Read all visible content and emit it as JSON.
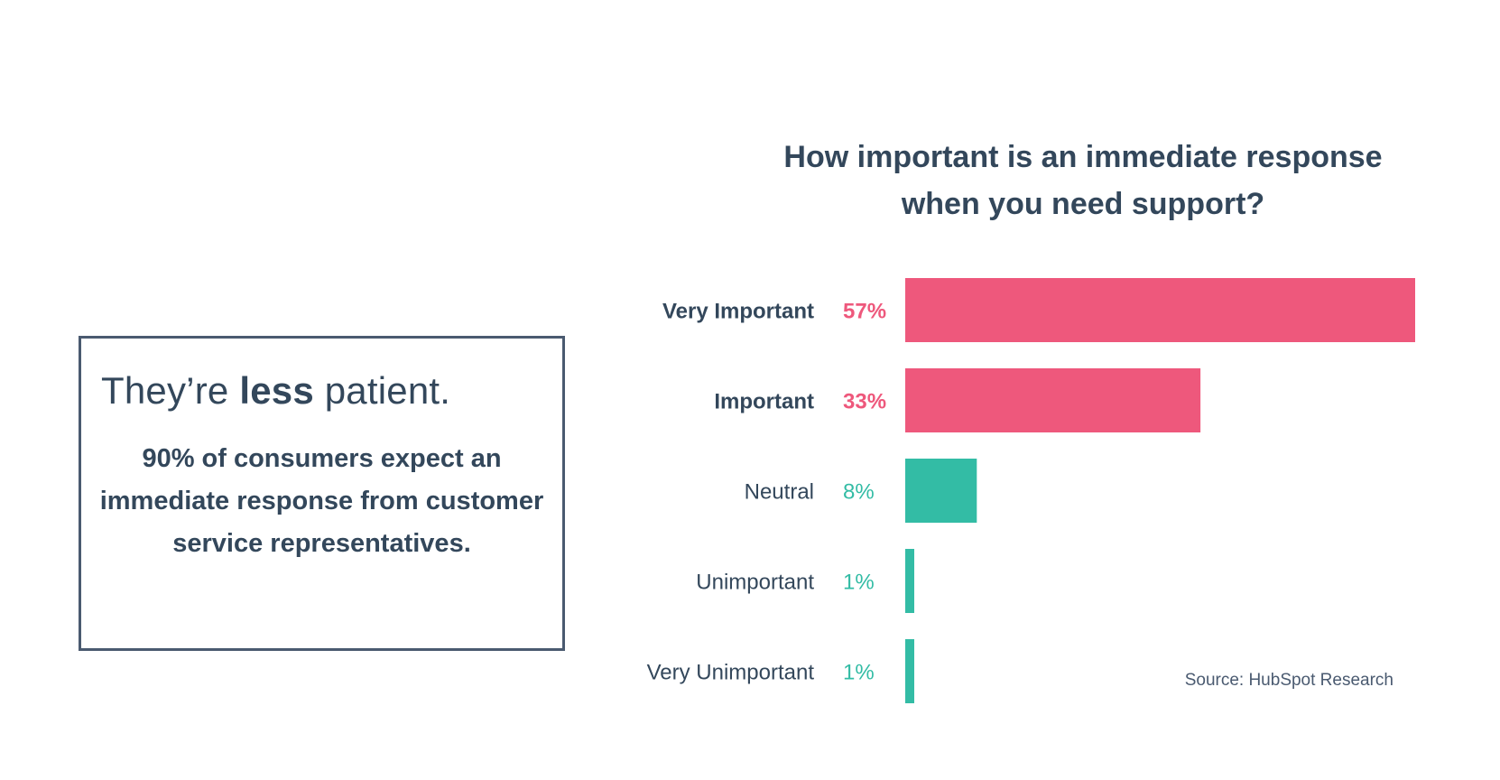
{
  "callout": {
    "headline_pre": "They’re ",
    "headline_bold": "less",
    "headline_post": " patient.",
    "body": "90% of consumers expect an immediate response from customer service representatives."
  },
  "chart_data": {
    "type": "bar",
    "orientation": "horizontal",
    "title_line1": "How important is an immediate response",
    "title_line2": "when you need support?",
    "categories": [
      "Very Important",
      "Important",
      "Neutral",
      "Unimportant",
      "Very Unimportant"
    ],
    "values": [
      57,
      33,
      8,
      1,
      1
    ],
    "value_labels": [
      "57%",
      "33%",
      "8%",
      "1%",
      "1%"
    ],
    "bar_colors": [
      "#ee587c",
      "#ee587c",
      "#33bca5",
      "#33bca5",
      "#33bca5"
    ],
    "label_emphasis": [
      "bold",
      "bold",
      "normal",
      "normal",
      "normal"
    ],
    "xlim": [
      0,
      57
    ],
    "grid": false,
    "legend": "none"
  },
  "source": "Source: HubSpot Research"
}
